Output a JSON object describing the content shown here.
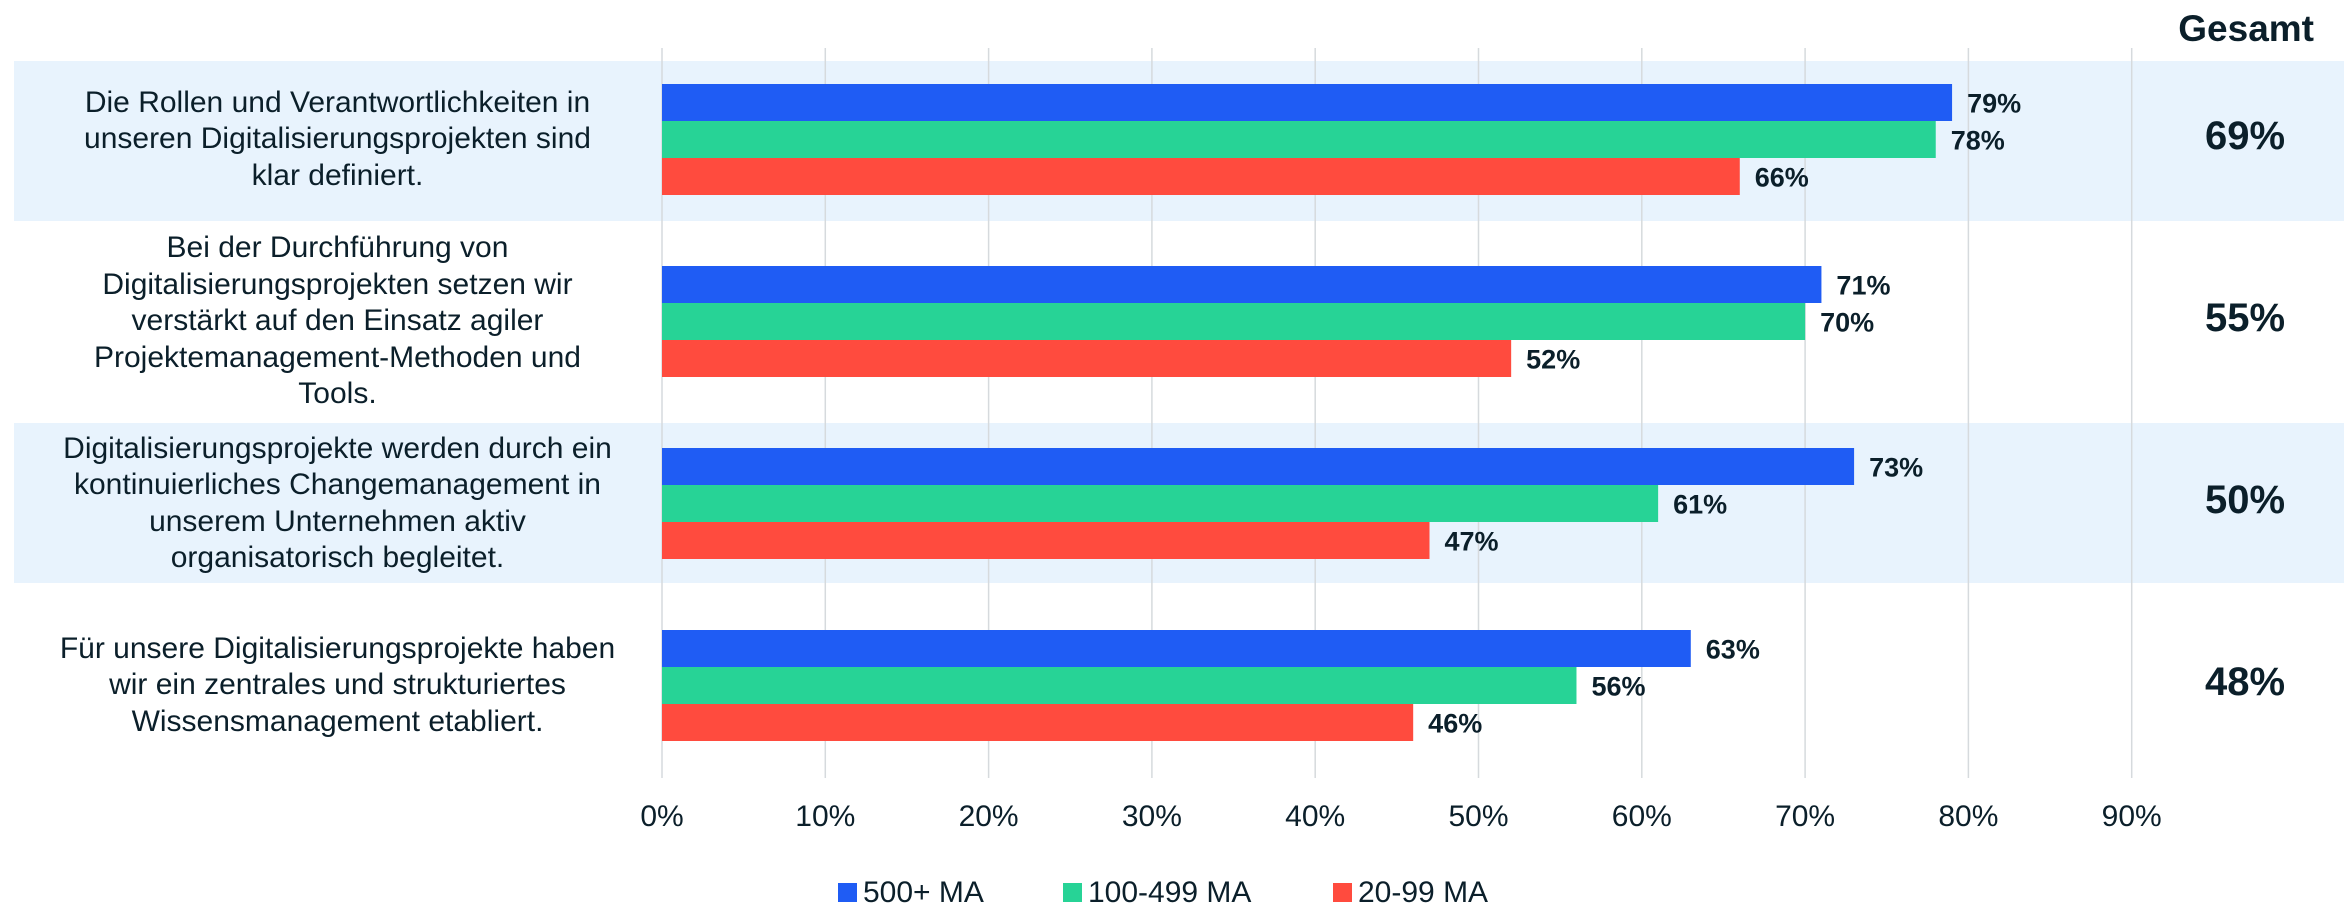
{
  "header": {
    "total_label": "Gesamt"
  },
  "colors": {
    "band": "#e8f3fd",
    "grid": "#d6dadd",
    "series": [
      "#1f5cf4",
      "#27d396",
      "#ff4b3e"
    ],
    "text": "#0b1f2a"
  },
  "chart_data": {
    "type": "bar",
    "orientation": "horizontal",
    "categories": [
      "Die Rollen und Verantwortlichkeiten in unseren Digitalisierungsprojekten sind klar definiert.",
      "Bei der Durchführung von Digitalisierungsprojekten setzen wir verstärkt auf den Einsatz agiler Projektemanagement-Methoden und Tools.",
      "Digitalisierungsprojekte werden durch ein kontinuierliches Changemanagement in unserem Unternehmen aktiv organisatorisch begleitet.",
      "Für unsere Digitalisierungsprojekte haben wir ein zentrales und strukturiertes Wissensmanagement etabliert."
    ],
    "category_lines": [
      [
        "Die Rollen und Verantwortlichkeiten in",
        "unseren Digitalisierungsprojekten sind",
        "klar definiert."
      ],
      [
        "Bei der Durchführung von",
        "Digitalisierungsprojekten setzen wir",
        "verstärkt auf den Einsatz agiler",
        "Projektemanagement-Methoden und",
        "Tools."
      ],
      [
        "Digitalisierungsprojekte werden durch ein",
        "kontinuierliches Changemanagement in",
        "unserem Unternehmen aktiv",
        "organisatorisch begleitet."
      ],
      [
        "Für unsere Digitalisierungsprojekte haben",
        "wir ein zentrales und strukturiertes",
        "Wissensmanagement etabliert."
      ]
    ],
    "series": [
      {
        "name": "500+ MA",
        "values": [
          79,
          71,
          73,
          63
        ]
      },
      {
        "name": "100-499 MA",
        "values": [
          78,
          70,
          61,
          56
        ]
      },
      {
        "name": "20-99 MA",
        "values": [
          66,
          52,
          47,
          46
        ]
      }
    ],
    "totals": [
      "69%",
      "55%",
      "50%",
      "48%"
    ],
    "x_ticks": [
      "0%",
      "10%",
      "20%",
      "30%",
      "40%",
      "50%",
      "60%",
      "70%",
      "80%",
      "90%"
    ],
    "xlim": [
      0,
      90
    ],
    "unit": "%",
    "grid": true,
    "legend_position": "bottom"
  }
}
